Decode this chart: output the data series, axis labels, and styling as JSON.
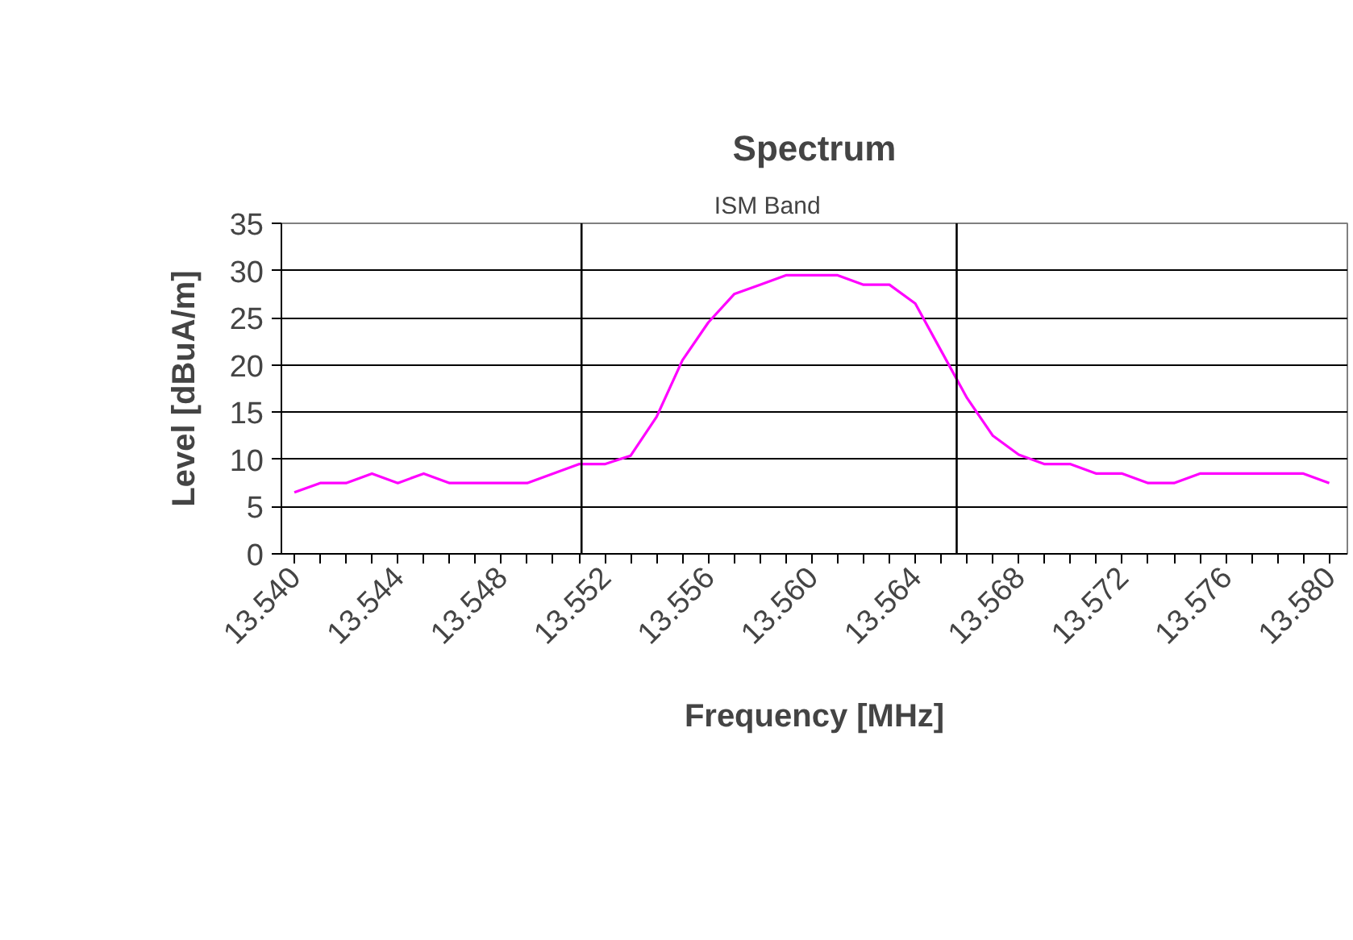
{
  "chart_data": {
    "type": "line",
    "title": "Spectrum",
    "xlabel": "Frequency [MHz]",
    "ylabel": "Level [dBuA/m]",
    "x": [
      13.54,
      13.541,
      13.542,
      13.543,
      13.544,
      13.545,
      13.546,
      13.547,
      13.548,
      13.549,
      13.55,
      13.551,
      13.552,
      13.553,
      13.554,
      13.555,
      13.556,
      13.557,
      13.558,
      13.559,
      13.56,
      13.561,
      13.562,
      13.563,
      13.564,
      13.565,
      13.566,
      13.567,
      13.568,
      13.569,
      13.57,
      13.571,
      13.572,
      13.573,
      13.574,
      13.575,
      13.576,
      13.577,
      13.578,
      13.579,
      13.58
    ],
    "series": [
      {
        "color": "#ff00ff",
        "values": [
          6.5,
          7.5,
          7.5,
          8.5,
          7.5,
          8.5,
          7.5,
          7.5,
          7.5,
          7.5,
          8.5,
          9.5,
          9.5,
          10.4,
          14.5,
          20.5,
          24.5,
          27.5,
          28.5,
          29.5,
          29.5,
          29.5,
          28.5,
          28.5,
          26.5,
          21.5,
          16.5,
          12.5,
          10.5,
          9.5,
          9.5,
          8.5,
          8.5,
          7.5,
          7.5,
          8.5,
          8.5,
          8.5,
          8.5,
          8.5,
          7.5
        ]
      }
    ],
    "xlim": [
      13.5395,
      13.5807
    ],
    "xticks": [
      {
        "value": 13.54,
        "label": "13.540"
      },
      {
        "value": 13.541,
        "label": null
      },
      {
        "value": 13.542,
        "label": null
      },
      {
        "value": 13.543,
        "label": null
      },
      {
        "value": 13.544,
        "label": "13.544"
      },
      {
        "value": 13.545,
        "label": null
      },
      {
        "value": 13.546,
        "label": null
      },
      {
        "value": 13.547,
        "label": null
      },
      {
        "value": 13.548,
        "label": "13.548"
      },
      {
        "value": 13.549,
        "label": null
      },
      {
        "value": 13.55,
        "label": null
      },
      {
        "value": 13.551,
        "label": null
      },
      {
        "value": 13.552,
        "label": "13.552"
      },
      {
        "value": 13.553,
        "label": null
      },
      {
        "value": 13.554,
        "label": null
      },
      {
        "value": 13.555,
        "label": null
      },
      {
        "value": 13.556,
        "label": "13.556"
      },
      {
        "value": 13.557,
        "label": null
      },
      {
        "value": 13.558,
        "label": null
      },
      {
        "value": 13.559,
        "label": null
      },
      {
        "value": 13.56,
        "label": "13.560"
      },
      {
        "value": 13.561,
        "label": null
      },
      {
        "value": 13.562,
        "label": null
      },
      {
        "value": 13.563,
        "label": null
      },
      {
        "value": 13.564,
        "label": "13.564"
      },
      {
        "value": 13.565,
        "label": null
      },
      {
        "value": 13.566,
        "label": null
      },
      {
        "value": 13.567,
        "label": null
      },
      {
        "value": 13.568,
        "label": "13.568"
      },
      {
        "value": 13.569,
        "label": null
      },
      {
        "value": 13.57,
        "label": null
      },
      {
        "value": 13.571,
        "label": null
      },
      {
        "value": 13.572,
        "label": "13.572"
      },
      {
        "value": 13.573,
        "label": null
      },
      {
        "value": 13.574,
        "label": null
      },
      {
        "value": 13.575,
        "label": null
      },
      {
        "value": 13.576,
        "label": "13.576"
      },
      {
        "value": 13.577,
        "label": null
      },
      {
        "value": 13.578,
        "label": null
      },
      {
        "value": 13.579,
        "label": null
      },
      {
        "value": 13.58,
        "label": "13.580"
      }
    ],
    "ylim": [
      0,
      35
    ],
    "yticks": [
      0,
      5,
      10,
      15,
      20,
      25,
      30,
      35
    ],
    "grid": "y",
    "marker": "none",
    "line_style": "solid",
    "ref_lines": [
      {
        "axis": "x",
        "value": 13.5511,
        "color": "#000000"
      },
      {
        "axis": "x",
        "value": 13.5656,
        "color": "#000000"
      }
    ],
    "annotations": [
      "ISM Band"
    ]
  }
}
